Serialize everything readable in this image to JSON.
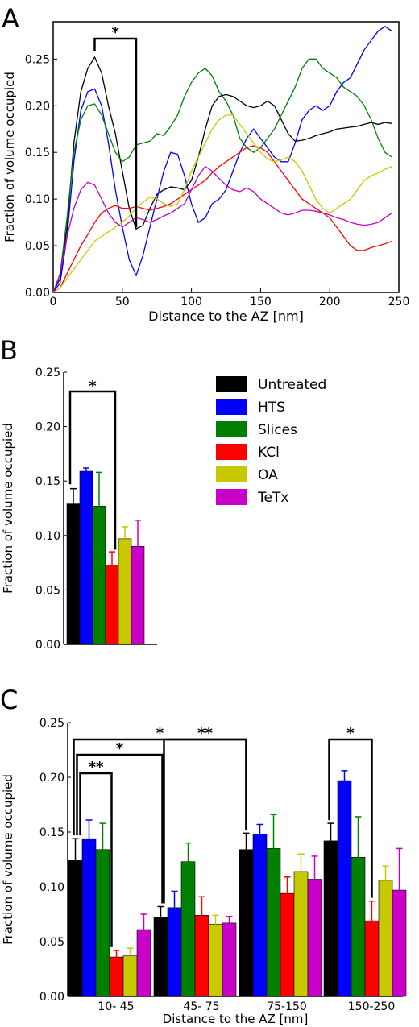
{
  "figure": {
    "panels": [
      {
        "id": "A",
        "letter": "A"
      },
      {
        "id": "B",
        "letter": "B"
      },
      {
        "id": "C",
        "letter": "C"
      }
    ]
  },
  "chart_data": [
    {
      "panel": "A",
      "type": "line",
      "xlabel": "Distance to the AZ [nm]",
      "ylabel": "Fraction of volume occupied",
      "xlim": [
        0,
        250
      ],
      "ylim": [
        0,
        0.29
      ],
      "xticks": [
        "0",
        "50",
        "100",
        "150",
        "200",
        "250"
      ],
      "yticks": [
        "0.00",
        "0.05",
        "0.10",
        "0.15",
        "0.20",
        "0.25"
      ],
      "grid": false,
      "annotations": [
        {
          "text": "*",
          "from_x": 30,
          "to_x": 60
        }
      ],
      "series": [
        {
          "name": "Untreated",
          "color": "#000000",
          "x": [
            0,
            5,
            10,
            15,
            20,
            25,
            30,
            35,
            40,
            45,
            50,
            55,
            60,
            65,
            70,
            75,
            80,
            85,
            90,
            95,
            100,
            105,
            110,
            115,
            120,
            125,
            130,
            135,
            140,
            145,
            150,
            155,
            160,
            165,
            170,
            175,
            180,
            185,
            190,
            195,
            200,
            205,
            210,
            215,
            220,
            225,
            230,
            235,
            240,
            245
          ],
          "y": [
            0,
            0.015,
            0.07,
            0.16,
            0.215,
            0.24,
            0.252,
            0.235,
            0.2,
            0.17,
            0.13,
            0.09,
            0.068,
            0.072,
            0.09,
            0.105,
            0.11,
            0.113,
            0.112,
            0.11,
            0.12,
            0.145,
            0.175,
            0.2,
            0.21,
            0.212,
            0.21,
            0.205,
            0.2,
            0.198,
            0.2,
            0.205,
            0.2,
            0.185,
            0.17,
            0.162,
            0.163,
            0.165,
            0.168,
            0.17,
            0.172,
            0.175,
            0.176,
            0.177,
            0.178,
            0.18,
            0.182,
            0.18,
            0.182,
            0.181
          ]
        },
        {
          "name": "HTS",
          "color": "#0000ff",
          "x": [
            0,
            5,
            10,
            15,
            20,
            25,
            30,
            35,
            40,
            45,
            50,
            55,
            60,
            65,
            70,
            75,
            80,
            85,
            90,
            95,
            100,
            105,
            110,
            115,
            120,
            125,
            130,
            135,
            140,
            145,
            150,
            155,
            160,
            165,
            170,
            175,
            180,
            185,
            190,
            195,
            200,
            205,
            210,
            215,
            220,
            225,
            230,
            235,
            240,
            245
          ],
          "y": [
            0,
            0.01,
            0.06,
            0.14,
            0.195,
            0.215,
            0.218,
            0.2,
            0.16,
            0.11,
            0.07,
            0.035,
            0.018,
            0.04,
            0.07,
            0.1,
            0.13,
            0.15,
            0.148,
            0.125,
            0.095,
            0.075,
            0.08,
            0.095,
            0.1,
            0.11,
            0.13,
            0.15,
            0.165,
            0.175,
            0.165,
            0.155,
            0.145,
            0.14,
            0.14,
            0.16,
            0.185,
            0.195,
            0.2,
            0.195,
            0.2,
            0.215,
            0.225,
            0.23,
            0.245,
            0.26,
            0.27,
            0.28,
            0.285,
            0.28
          ]
        },
        {
          "name": "Slices",
          "color": "#008000",
          "x": [
            0,
            5,
            10,
            15,
            20,
            25,
            30,
            35,
            40,
            45,
            50,
            55,
            60,
            65,
            70,
            75,
            80,
            85,
            90,
            95,
            100,
            105,
            110,
            115,
            120,
            125,
            130,
            135,
            140,
            145,
            150,
            155,
            160,
            165,
            170,
            175,
            180,
            185,
            190,
            195,
            200,
            205,
            210,
            215,
            220,
            225,
            230,
            235,
            240,
            245
          ],
          "y": [
            0,
            0.02,
            0.08,
            0.15,
            0.185,
            0.2,
            0.202,
            0.19,
            0.17,
            0.15,
            0.14,
            0.145,
            0.158,
            0.16,
            0.162,
            0.17,
            0.168,
            0.178,
            0.19,
            0.21,
            0.225,
            0.235,
            0.24,
            0.232,
            0.215,
            0.205,
            0.19,
            0.165,
            0.155,
            0.15,
            0.155,
            0.165,
            0.175,
            0.19,
            0.205,
            0.22,
            0.24,
            0.25,
            0.25,
            0.24,
            0.235,
            0.23,
            0.22,
            0.215,
            0.21,
            0.2,
            0.185,
            0.165,
            0.15,
            0.145
          ]
        },
        {
          "name": "KCl",
          "color": "#ff0000",
          "x": [
            0,
            5,
            10,
            15,
            20,
            25,
            30,
            35,
            40,
            45,
            50,
            55,
            60,
            65,
            70,
            75,
            80,
            85,
            90,
            95,
            100,
            105,
            110,
            115,
            120,
            125,
            130,
            135,
            140,
            145,
            150,
            155,
            160,
            165,
            170,
            175,
            180,
            185,
            190,
            195,
            200,
            205,
            210,
            215,
            220,
            225,
            230,
            235,
            240,
            245
          ],
          "y": [
            0,
            0.005,
            0.02,
            0.035,
            0.05,
            0.062,
            0.075,
            0.085,
            0.09,
            0.093,
            0.09,
            0.09,
            0.092,
            0.09,
            0.088,
            0.09,
            0.092,
            0.095,
            0.1,
            0.105,
            0.11,
            0.115,
            0.12,
            0.128,
            0.135,
            0.14,
            0.145,
            0.15,
            0.155,
            0.157,
            0.155,
            0.15,
            0.14,
            0.13,
            0.12,
            0.11,
            0.1,
            0.095,
            0.09,
            0.085,
            0.08,
            0.07,
            0.06,
            0.05,
            0.045,
            0.045,
            0.048,
            0.05,
            0.052,
            0.055
          ]
        },
        {
          "name": "OA",
          "color": "#c8c800",
          "x": [
            0,
            5,
            10,
            15,
            20,
            25,
            30,
            35,
            40,
            45,
            50,
            55,
            60,
            65,
            70,
            75,
            80,
            85,
            90,
            95,
            100,
            105,
            110,
            115,
            120,
            125,
            130,
            135,
            140,
            145,
            150,
            155,
            160,
            165,
            170,
            175,
            180,
            185,
            190,
            195,
            200,
            205,
            210,
            215,
            220,
            225,
            230,
            235,
            240,
            245
          ],
          "y": [
            0,
            0.005,
            0.015,
            0.025,
            0.035,
            0.045,
            0.055,
            0.06,
            0.065,
            0.07,
            0.075,
            0.082,
            0.09,
            0.097,
            0.102,
            0.1,
            0.095,
            0.092,
            0.095,
            0.11,
            0.13,
            0.145,
            0.16,
            0.175,
            0.185,
            0.19,
            0.19,
            0.18,
            0.17,
            0.16,
            0.15,
            0.143,
            0.14,
            0.142,
            0.145,
            0.14,
            0.13,
            0.115,
            0.1,
            0.09,
            0.085,
            0.09,
            0.095,
            0.1,
            0.11,
            0.12,
            0.125,
            0.128,
            0.132,
            0.135
          ]
        },
        {
          "name": "TeTx",
          "color": "#c800c8",
          "x": [
            0,
            5,
            10,
            15,
            20,
            25,
            30,
            35,
            40,
            45,
            50,
            55,
            60,
            65,
            70,
            75,
            80,
            85,
            90,
            95,
            100,
            105,
            110,
            115,
            120,
            125,
            130,
            135,
            140,
            145,
            150,
            155,
            160,
            165,
            170,
            175,
            180,
            185,
            190,
            195,
            200,
            205,
            210,
            215,
            220,
            225,
            230,
            235,
            240,
            245
          ],
          "y": [
            0,
            0.02,
            0.06,
            0.09,
            0.11,
            0.118,
            0.115,
            0.1,
            0.085,
            0.075,
            0.07,
            0.075,
            0.08,
            0.078,
            0.075,
            0.078,
            0.082,
            0.085,
            0.09,
            0.095,
            0.11,
            0.125,
            0.135,
            0.13,
            0.122,
            0.115,
            0.11,
            0.108,
            0.112,
            0.108,
            0.1,
            0.095,
            0.09,
            0.085,
            0.083,
            0.085,
            0.088,
            0.088,
            0.087,
            0.085,
            0.083,
            0.08,
            0.078,
            0.075,
            0.073,
            0.072,
            0.073,
            0.075,
            0.08,
            0.085
          ]
        }
      ]
    },
    {
      "panel": "B",
      "type": "bar",
      "xlabel": "",
      "ylabel": "Fraction of volume occupied",
      "ylim": [
        0,
        0.25
      ],
      "yticks": [
        "0.00",
        "0.05",
        "0.10",
        "0.15",
        "0.20",
        "0.25"
      ],
      "grid": false,
      "legend_position": "right",
      "series": [
        {
          "name": "Untreated",
          "color": "#000000",
          "value": 0.129,
          "error": 0.014
        },
        {
          "name": "HTS",
          "color": "#0000ff",
          "value": 0.159,
          "error": 0.003
        },
        {
          "name": "Slices",
          "color": "#008000",
          "value": 0.127,
          "error": 0.031
        },
        {
          "name": "KCl",
          "color": "#ff0000",
          "value": 0.073,
          "error": 0.012
        },
        {
          "name": "OA",
          "color": "#c8c800",
          "value": 0.097,
          "error": 0.011
        },
        {
          "name": "TeTx",
          "color": "#c800c8",
          "value": 0.09,
          "error": 0.024
        }
      ],
      "annotations": [
        {
          "text": "*",
          "from": "Untreated",
          "to": "KCl"
        }
      ]
    },
    {
      "panel": "C",
      "type": "bar",
      "xlabel": "Distance to the AZ [nm]",
      "ylabel": "Fraction of volume occupied",
      "ylim": [
        0,
        0.25
      ],
      "yticks": [
        "0.00",
        "0.05",
        "0.10",
        "0.15",
        "0.20",
        "0.25"
      ],
      "grid": false,
      "categories": [
        "10- 45",
        "45- 75",
        "75-150",
        "150-250"
      ],
      "series": [
        {
          "name": "Untreated",
          "color": "#000000",
          "values": [
            0.124,
            0.072,
            0.134,
            0.142
          ],
          "errors": [
            0.02,
            0.01,
            0.015,
            0.016
          ]
        },
        {
          "name": "HTS",
          "color": "#0000ff",
          "values": [
            0.144,
            0.081,
            0.148,
            0.197
          ],
          "errors": [
            0.017,
            0.015,
            0.009,
            0.009
          ]
        },
        {
          "name": "Slices",
          "color": "#008000",
          "values": [
            0.134,
            0.123,
            0.135,
            0.127
          ],
          "errors": [
            0.024,
            0.017,
            0.031,
            0.037
          ]
        },
        {
          "name": "KCl",
          "color": "#ff0000",
          "values": [
            0.036,
            0.074,
            0.094,
            0.069
          ],
          "errors": [
            0.006,
            0.017,
            0.015,
            0.018
          ]
        },
        {
          "name": "OA",
          "color": "#c8c800",
          "values": [
            0.037,
            0.066,
            0.114,
            0.106
          ],
          "errors": [
            0.007,
            0.008,
            0.016,
            0.013
          ]
        },
        {
          "name": "TeTx",
          "color": "#c800c8",
          "values": [
            0.061,
            0.067,
            0.107,
            0.097
          ],
          "errors": [
            0.014,
            0.006,
            0.021,
            0.038
          ]
        }
      ],
      "annotations": [
        {
          "text": "*",
          "from": [
            "10- 45",
            "Untreated"
          ],
          "to": [
            "75-150",
            "Untreated"
          ]
        },
        {
          "text": "**",
          "from": [
            "45- 75",
            "Untreated"
          ],
          "to": [
            "75-150",
            "Untreated"
          ]
        },
        {
          "text": "*",
          "from": [
            "10- 45",
            "Untreated"
          ],
          "to": [
            "45- 75",
            "Untreated"
          ]
        },
        {
          "text": "**",
          "from": [
            "10- 45",
            "Untreated"
          ],
          "to": [
            "10- 45",
            "KCl"
          ]
        },
        {
          "text": "*",
          "from": [
            "150-250",
            "Untreated"
          ],
          "to": [
            "150-250",
            "KCl"
          ]
        }
      ]
    }
  ]
}
